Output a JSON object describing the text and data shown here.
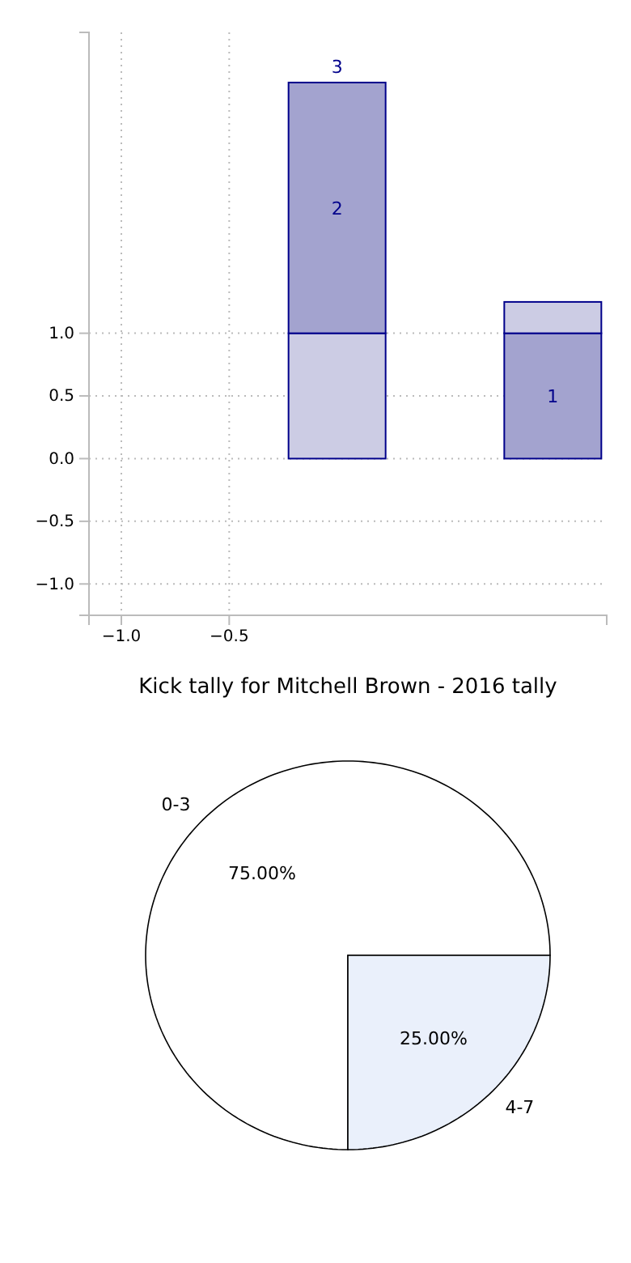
{
  "chart_data": [
    {
      "type": "bar",
      "x": [
        0,
        1
      ],
      "stacked": true,
      "xlim": [
        -1.15,
        1.25
      ],
      "ylim": [
        -1.25,
        3.4
      ],
      "grid": true,
      "totals": [
        "3",
        null
      ],
      "xticks": [
        {
          "value": -1,
          "label": "−1.0"
        },
        {
          "value": -0.5,
          "label": "−0.5"
        }
      ],
      "yticks": [
        {
          "value": -1,
          "label": "−1.0"
        },
        {
          "value": -0.5,
          "label": "−0.5"
        },
        {
          "value": 0,
          "label": "0.0"
        },
        {
          "value": 0.5,
          "label": "0.5"
        },
        {
          "value": 1,
          "label": "1.0"
        }
      ],
      "series": [
        {
          "colors": [
            "#cccce4",
            "#a3a3cf"
          ],
          "values": [
            1,
            1
          ],
          "value_labels": [
            null,
            "1"
          ]
        },
        {
          "colors": [
            "#a3a3cf",
            "#cccce4"
          ],
          "values": [
            2,
            0.25
          ],
          "value_labels": [
            "2",
            null
          ]
        }
      ]
    },
    {
      "type": "pie",
      "title": "Kick tally for Mitchell Brown - 2016 tally",
      "categories": [
        "0-3",
        "4-7"
      ],
      "values": [
        75,
        25
      ],
      "colors": [
        "#ffffff",
        "#eaf0fb"
      ],
      "value_labels": [
        "75.00%",
        "25.00%"
      ]
    }
  ]
}
